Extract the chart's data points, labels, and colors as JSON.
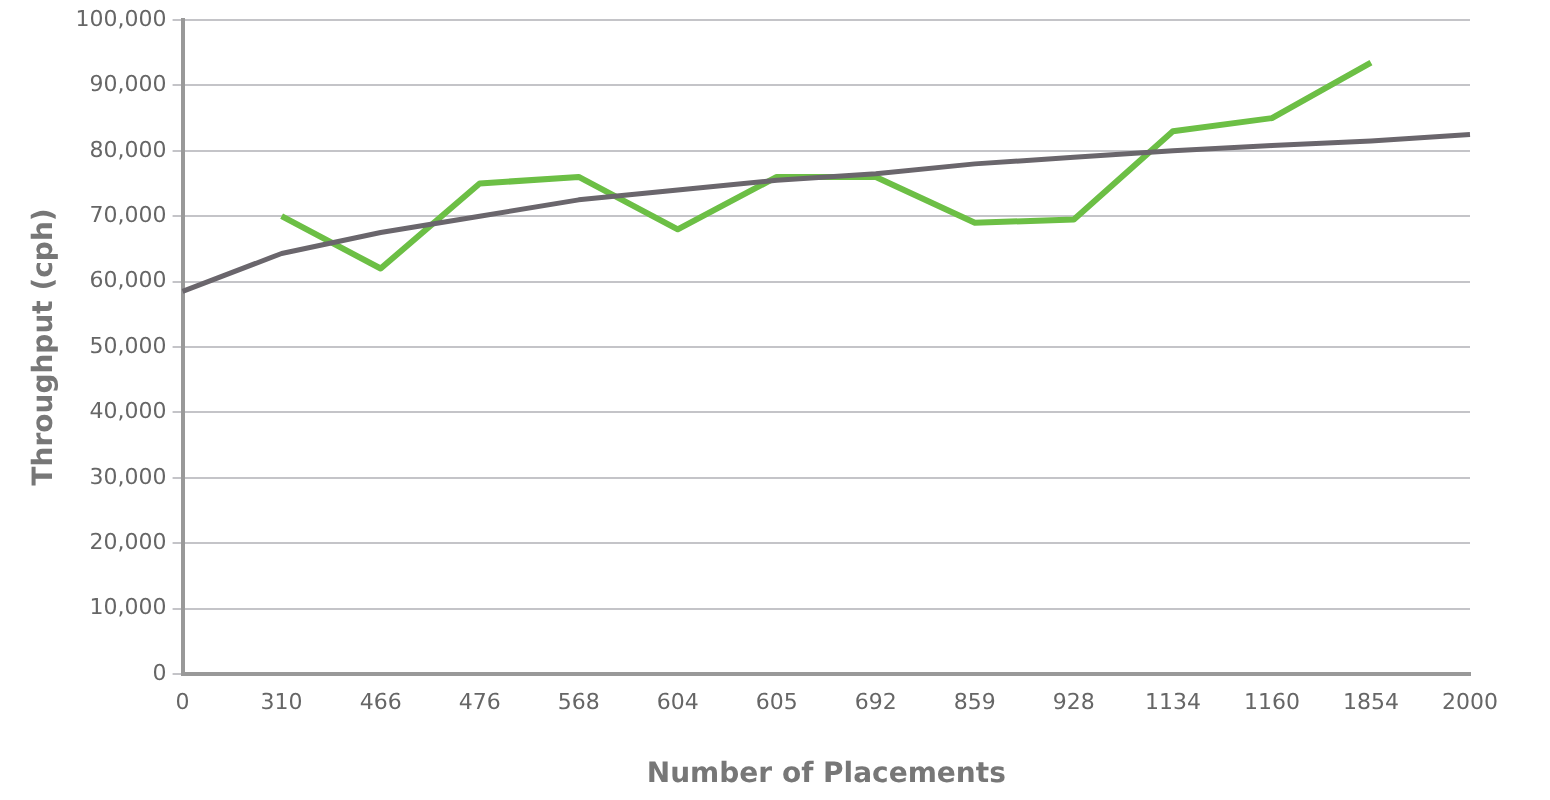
{
  "chart_data": {
    "type": "line",
    "xlabel": "Number of Placements",
    "ylabel": "Throughput (cph)",
    "categories": [
      "0",
      "310",
      "466",
      "476",
      "568",
      "604",
      "605",
      "692",
      "859",
      "928",
      "1134",
      "1160",
      "1854",
      "2000"
    ],
    "series": [
      {
        "color": "#6a666c",
        "values": [
          58500,
          64300,
          67500,
          70000,
          72500,
          74000,
          75500,
          76500,
          78000,
          79000,
          80000,
          80800,
          81500,
          82500
        ]
      },
      {
        "color": "#6cbf45",
        "values": [
          null,
          70000,
          62000,
          75000,
          76000,
          68000,
          76000,
          76000,
          69000,
          69500,
          83000,
          85000,
          93500,
          null
        ]
      }
    ],
    "ylim": [
      0,
      100000
    ],
    "yticks": [
      0,
      {
        "value": 10000,
        "label": "10,000"
      },
      {
        "value": 20000,
        "label": "20,000"
      },
      {
        "value": 30000,
        "label": "30,000"
      },
      {
        "value": 40000,
        "label": "40,000"
      },
      {
        "value": 50000,
        "label": "50,000"
      },
      {
        "value": 60000,
        "label": "60,000"
      },
      {
        "value": 70000,
        "label": "70,000"
      },
      {
        "value": 80000,
        "label": "80,000"
      },
      {
        "value": 90000,
        "label": "90,000"
      },
      {
        "value": 100000,
        "label": "100,000"
      }
    ],
    "grid": "y",
    "legend": false,
    "marker": "none",
    "line_style": "solid"
  }
}
